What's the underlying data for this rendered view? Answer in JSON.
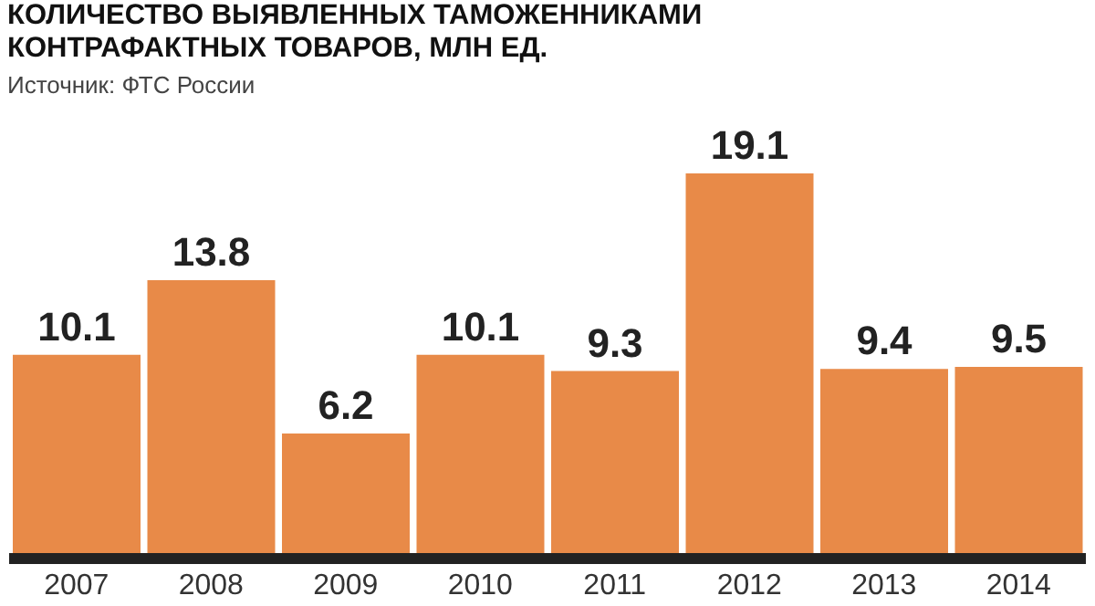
{
  "chart_data": {
    "type": "bar",
    "title": "КОЛИЧЕСТВО ВЫЯВЛЕННЫХ ТАМОЖЕННИКАМИ КОНТРАФАКТНЫХ ТОВАРОВ, МЛН ЕД.",
    "annotations": [
      "Источник: ФТС России"
    ],
    "categories": [
      "2007",
      "2008",
      "2009",
      "2010",
      "2011",
      "2012",
      "2013",
      "2014"
    ],
    "values": [
      10.1,
      13.8,
      6.2,
      10.1,
      9.3,
      19.1,
      9.4,
      9.5
    ],
    "color": "#e88a48",
    "data_labels": true,
    "tick_labels": "x"
  }
}
